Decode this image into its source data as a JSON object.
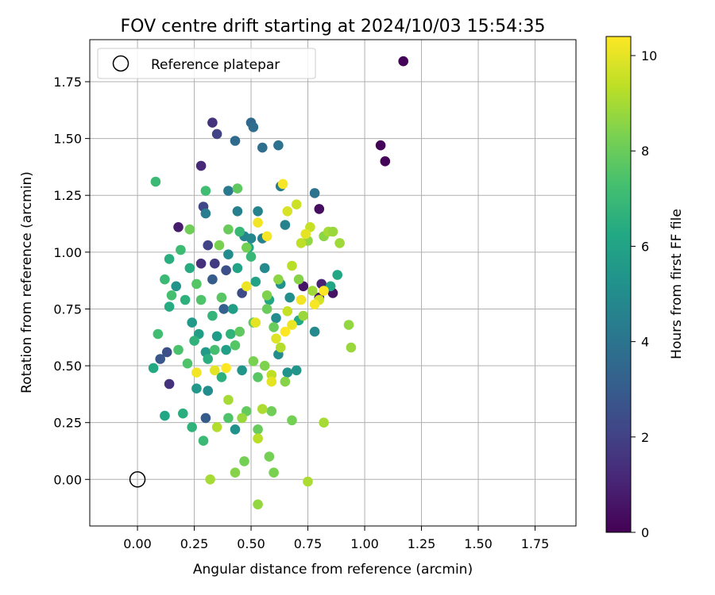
{
  "chart_data": {
    "type": "scatter",
    "title": "FOV centre drift starting at 2024/10/03 15:54:35",
    "xlabel": "Angular distance from reference (arcmin)",
    "ylabel": "Rotation from reference (arcmin)",
    "xlim": [
      -0.21,
      1.93
    ],
    "ylim": [
      -0.205,
      1.935
    ],
    "xticks": [
      0.0,
      0.25,
      0.5,
      0.75,
      1.0,
      1.25,
      1.5,
      1.75
    ],
    "xtick_labels": [
      "0.00",
      "0.25",
      "0.50",
      "0.75",
      "1.00",
      "1.25",
      "1.50",
      "1.75"
    ],
    "yticks": [
      0.0,
      0.25,
      0.5,
      0.75,
      1.0,
      1.25,
      1.5,
      1.75
    ],
    "ytick_labels": [
      "0.00",
      "0.25",
      "0.50",
      "0.75",
      "1.00",
      "1.25",
      "1.50",
      "1.75"
    ],
    "grid": true,
    "legend": {
      "position": "top-left",
      "entries": [
        "Reference platepar"
      ]
    },
    "reference_point": {
      "x": 0.0,
      "y": 0.0,
      "label": "Reference platepar"
    },
    "colorbar": {
      "label": "Hours from first FF file",
      "colormap": "viridis",
      "range": [
        0,
        10.4
      ],
      "ticks": [
        0,
        2,
        4,
        6,
        8,
        10
      ],
      "tick_labels": [
        "0",
        "2",
        "4",
        "6",
        "8",
        "10"
      ]
    },
    "series": [
      {
        "points": [
          [
            1.17,
            1.84,
            0.1
          ],
          [
            1.07,
            1.47,
            0.1
          ],
          [
            1.09,
            1.4,
            0.1
          ],
          [
            0.8,
            1.19,
            0.4
          ],
          [
            0.86,
            0.82,
            0.5
          ],
          [
            0.8,
            0.8,
            0.6
          ],
          [
            0.73,
            0.85,
            0.6
          ],
          [
            0.18,
            1.11,
            0.8
          ],
          [
            0.81,
            0.86,
            1.0
          ],
          [
            0.28,
            1.38,
            1.2
          ],
          [
            0.33,
            1.57,
            1.5
          ],
          [
            0.35,
            1.52,
            2.0
          ],
          [
            0.14,
            0.42,
            1.5
          ],
          [
            0.31,
            1.03,
            2.0
          ],
          [
            0.34,
            0.95,
            1.8
          ],
          [
            0.28,
            0.95,
            1.4
          ],
          [
            0.29,
            1.2,
            2.2
          ],
          [
            0.39,
            0.92,
            2.5
          ],
          [
            0.1,
            0.53,
            2.8
          ],
          [
            0.13,
            0.56,
            2.5
          ],
          [
            0.46,
            0.82,
            2.4
          ],
          [
            0.3,
            0.27,
            3.0
          ],
          [
            0.33,
            0.88,
            3.0
          ],
          [
            0.38,
            0.75,
            3.2
          ],
          [
            0.5,
            1.57,
            3.5
          ],
          [
            0.51,
            1.55,
            3.7
          ],
          [
            0.43,
            1.49,
            3.6
          ],
          [
            0.55,
            1.46,
            3.8
          ],
          [
            0.62,
            1.47,
            3.9
          ],
          [
            0.4,
            1.27,
            4.2
          ],
          [
            0.63,
            1.29,
            4.3
          ],
          [
            0.78,
            1.26,
            4.0
          ],
          [
            0.44,
            1.18,
            4.5
          ],
          [
            0.53,
            1.18,
            4.6
          ],
          [
            0.3,
            1.17,
            4.4
          ],
          [
            0.47,
            1.07,
            4.7
          ],
          [
            0.5,
            1.06,
            4.8
          ],
          [
            0.55,
            1.06,
            4.5
          ],
          [
            0.65,
            1.12,
            4.6
          ],
          [
            0.4,
            0.99,
            5.0
          ],
          [
            0.56,
            0.93,
            4.9
          ],
          [
            0.61,
            0.71,
            5.0
          ],
          [
            0.63,
            0.86,
            5.2
          ],
          [
            0.67,
            0.8,
            5.1
          ],
          [
            0.78,
            0.65,
            4.9
          ],
          [
            0.62,
            0.55,
            5.0
          ],
          [
            0.66,
            0.47,
            5.3
          ],
          [
            0.7,
            0.48,
            5.4
          ],
          [
            0.31,
            0.39,
            5.0
          ],
          [
            0.43,
            0.22,
            5.2
          ],
          [
            0.46,
            0.48,
            5.4
          ],
          [
            0.26,
            0.4,
            5.5
          ],
          [
            0.3,
            0.56,
            5.6
          ],
          [
            0.17,
            0.85,
            5.3
          ],
          [
            0.24,
            0.69,
            5.6
          ],
          [
            0.27,
            0.64,
            5.8
          ],
          [
            0.35,
            0.63,
            5.7
          ],
          [
            0.39,
            0.57,
            5.9
          ],
          [
            0.42,
            0.75,
            5.8
          ],
          [
            0.44,
            0.93,
            6.0
          ],
          [
            0.49,
            1.02,
            6.1
          ],
          [
            0.52,
            0.87,
            6.0
          ],
          [
            0.58,
            0.79,
            6.2
          ],
          [
            0.71,
            0.7,
            6.3
          ],
          [
            0.85,
            0.85,
            6.1
          ],
          [
            0.88,
            0.9,
            6.2
          ],
          [
            0.07,
            0.49,
            6.3
          ],
          [
            0.12,
            0.28,
            6.2
          ],
          [
            0.14,
            0.76,
            6.4
          ],
          [
            0.14,
            0.97,
            6.5
          ],
          [
            0.21,
            0.79,
            6.6
          ],
          [
            0.23,
            0.93,
            6.4
          ],
          [
            0.25,
            0.61,
            6.7
          ],
          [
            0.31,
            0.53,
            6.5
          ],
          [
            0.33,
            0.72,
            6.8
          ],
          [
            0.37,
            0.45,
            6.6
          ],
          [
            0.41,
            0.64,
            6.7
          ],
          [
            0.45,
            1.09,
            6.9
          ],
          [
            0.5,
            0.98,
            6.9
          ],
          [
            0.2,
            0.29,
            6.5
          ],
          [
            0.24,
            0.23,
            6.7
          ],
          [
            0.29,
            0.17,
            7.0
          ],
          [
            0.08,
            1.31,
            7.0
          ],
          [
            0.3,
            1.27,
            7.2
          ],
          [
            0.19,
            1.01,
            7.1
          ],
          [
            0.09,
            0.64,
            7.2
          ],
          [
            0.12,
            0.88,
            7.0
          ],
          [
            0.15,
            0.81,
            7.3
          ],
          [
            0.18,
            0.57,
            7.4
          ],
          [
            0.22,
            0.51,
            7.5
          ],
          [
            0.26,
            0.86,
            7.6
          ],
          [
            0.28,
            0.79,
            7.5
          ],
          [
            0.34,
            0.57,
            7.3
          ],
          [
            0.37,
            0.8,
            7.7
          ],
          [
            0.4,
            0.27,
            7.5
          ],
          [
            0.43,
            0.59,
            7.6
          ],
          [
            0.45,
            0.65,
            7.8
          ],
          [
            0.48,
            0.3,
            7.9
          ],
          [
            0.51,
            0.69,
            7.8
          ],
          [
            0.53,
            0.45,
            7.7
          ],
          [
            0.57,
            0.75,
            8.0
          ],
          [
            0.59,
            0.3,
            8.1
          ],
          [
            0.6,
            0.67,
            8.0
          ],
          [
            0.47,
            0.08,
            8.2
          ],
          [
            0.51,
            0.52,
            8.3
          ],
          [
            0.53,
            0.22,
            8.0
          ],
          [
            0.56,
            0.5,
            8.4
          ],
          [
            0.58,
            0.1,
            8.2
          ],
          [
            0.6,
            0.03,
            8.3
          ],
          [
            0.65,
            0.43,
            8.5
          ],
          [
            0.68,
            0.26,
            8.2
          ],
          [
            0.44,
            1.28,
            7.8
          ],
          [
            0.36,
            1.03,
            8.3
          ],
          [
            0.23,
            1.1,
            8.1
          ],
          [
            0.4,
            1.1,
            8.0
          ],
          [
            0.48,
            1.02,
            8.2
          ],
          [
            0.57,
            0.81,
            8.4
          ],
          [
            0.62,
            0.88,
            8.6
          ],
          [
            0.71,
            0.88,
            8.5
          ],
          [
            0.73,
            0.72,
            8.8
          ],
          [
            0.75,
            1.05,
            8.7
          ],
          [
            0.77,
            0.83,
            8.9
          ],
          [
            0.82,
            1.07,
            8.6
          ],
          [
            0.84,
            1.09,
            9.0
          ],
          [
            0.86,
            1.09,
            8.8
          ],
          [
            0.89,
            1.04,
            8.9
          ],
          [
            0.93,
            0.68,
            8.7
          ],
          [
            0.94,
            0.58,
            8.8
          ],
          [
            0.82,
            0.25,
            9.0
          ],
          [
            0.75,
            -0.01,
            9.1
          ],
          [
            0.53,
            -0.11,
            8.7
          ],
          [
            0.43,
            0.03,
            8.5
          ],
          [
            0.32,
            0.0,
            9.0
          ],
          [
            0.35,
            0.23,
            9.2
          ],
          [
            0.4,
            0.35,
            9.0
          ],
          [
            0.46,
            0.27,
            8.8
          ],
          [
            0.53,
            0.18,
            9.3
          ],
          [
            0.55,
            0.31,
            9.1
          ],
          [
            0.59,
            0.46,
            9.4
          ],
          [
            0.63,
            0.58,
            9.2
          ],
          [
            0.66,
            0.74,
            9.5
          ],
          [
            0.68,
            0.94,
            9.3
          ],
          [
            0.7,
            1.21,
            9.6
          ],
          [
            0.72,
            1.04,
            9.4
          ],
          [
            0.76,
            1.11,
            9.5
          ],
          [
            0.8,
            0.79,
            9.7
          ],
          [
            0.66,
            1.18,
            9.8
          ],
          [
            0.34,
            0.48,
            10.0
          ],
          [
            0.48,
            0.85,
            10.1
          ],
          [
            0.53,
            1.13,
            10.2
          ],
          [
            0.57,
            1.07,
            10.3
          ],
          [
            0.59,
            0.43,
            10.0
          ],
          [
            0.64,
            1.3,
            10.3
          ],
          [
            0.65,
            0.65,
            10.4
          ],
          [
            0.68,
            0.68,
            10.1
          ],
          [
            0.72,
            0.79,
            10.2
          ],
          [
            0.74,
            1.08,
            10.0
          ],
          [
            0.78,
            0.77,
            10.3
          ],
          [
            0.82,
            0.83,
            10.4
          ],
          [
            0.26,
            0.47,
            10.2
          ],
          [
            0.52,
            0.69,
            10.0
          ],
          [
            0.39,
            0.49,
            10.4
          ],
          [
            0.61,
            0.62,
            9.9
          ]
        ]
      }
    ]
  }
}
